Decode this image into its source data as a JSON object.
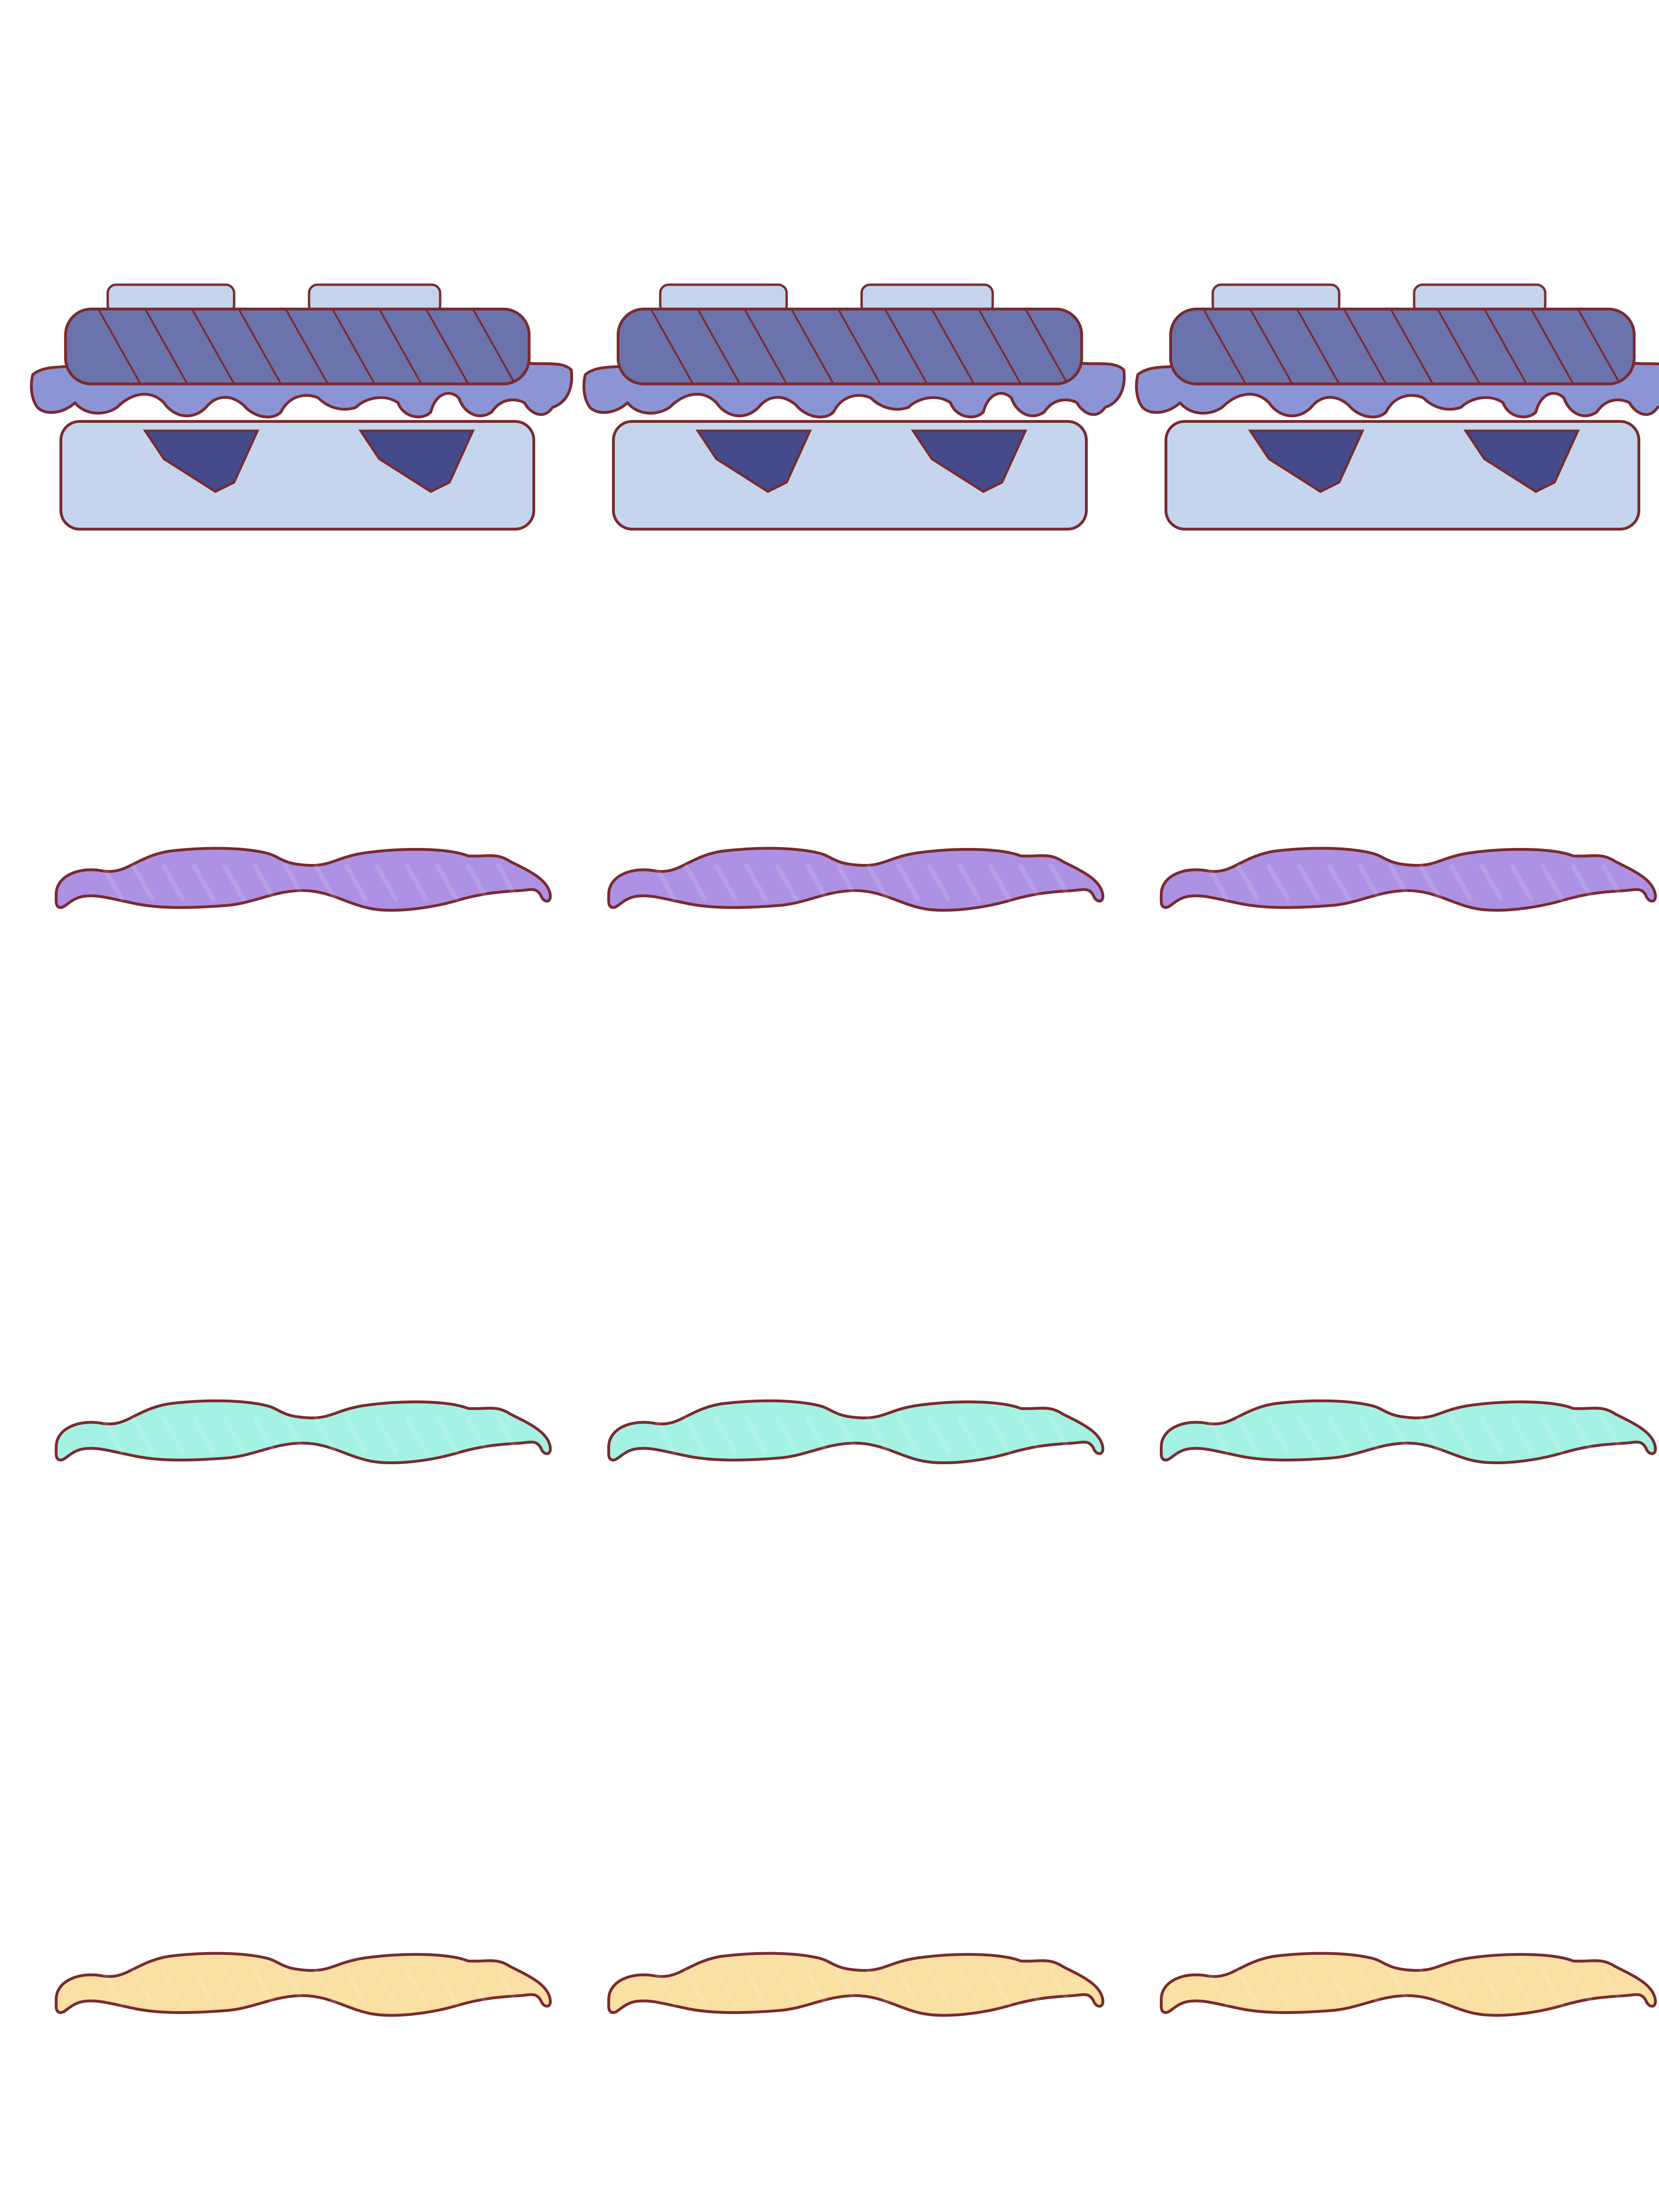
{
  "sheet": {
    "background": "#ffffff",
    "outline_color": "#7a2a2e",
    "rows": [
      {
        "kind": "sandwich",
        "count": 3,
        "colors": {
          "bread": "#c5d5ee",
          "bread_topping": "#c4d4ec",
          "top_bun": "#6b73ad",
          "lettuce": "#8b95d6",
          "filling": "#444a8a"
        }
      },
      {
        "kind": "wavy-layer",
        "count": 3,
        "colors": {
          "fill": "#ad91e4"
        }
      },
      {
        "kind": "wavy-layer",
        "count": 3,
        "colors": {
          "fill": "#a4f2e4"
        }
      },
      {
        "kind": "wavy-layer",
        "count": 3,
        "colors": {
          "fill": "#fbe0a3"
        }
      }
    ]
  }
}
